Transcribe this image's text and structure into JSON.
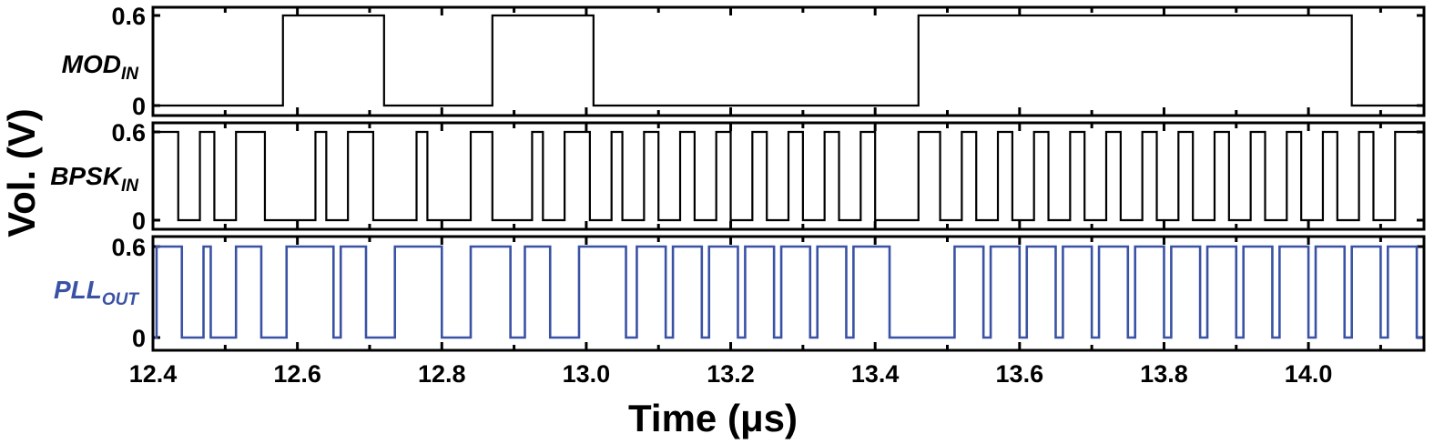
{
  "chart_data": {
    "type": "line",
    "xlabel": "Time (μs)",
    "ylabel": "Vol. (V)",
    "xlim": [
      12.4,
      14.16
    ],
    "x_ticks": [
      "12.4",
      "12.6",
      "12.8",
      "13.0",
      "13.2",
      "13.4",
      "13.6",
      "13.8",
      "14.0"
    ],
    "y_ticks": [
      "0",
      "0.6"
    ],
    "ylim": [
      0,
      0.6
    ],
    "colors": {
      "black": "#000000",
      "pll": "#3a52a5"
    },
    "panels": [
      {
        "name": "MOD",
        "subscript": "IN",
        "color": "#000000",
        "low": 0,
        "high": 0.6,
        "initial": 0,
        "transitions": [
          12.58,
          12.72,
          12.87,
          13.01,
          13.46,
          14.06
        ]
      },
      {
        "name": "BPSK",
        "subscript": "IN",
        "color": "#000000",
        "low": 0,
        "high": 0.6,
        "initial": 0.6,
        "transitions": [
          12.435,
          12.465,
          12.485,
          12.515,
          12.555,
          12.625,
          12.64,
          12.67,
          12.705,
          12.765,
          12.78,
          12.84,
          12.87,
          12.925,
          12.94,
          12.97,
          13.005,
          13.035,
          13.05,
          13.08,
          13.1,
          13.13,
          13.15,
          13.18,
          13.2,
          13.23,
          13.25,
          13.28,
          13.3,
          13.33,
          13.35,
          13.38,
          13.4,
          13.46,
          13.49,
          13.52,
          13.54,
          13.57,
          13.59,
          13.62,
          13.64,
          13.67,
          13.69,
          13.72,
          13.74,
          13.77,
          13.79,
          13.82,
          13.84,
          13.87,
          13.89,
          13.92,
          13.94,
          13.97,
          13.99,
          14.02,
          14.04,
          14.07,
          14.09,
          14.12
        ]
      },
      {
        "name": "PLL",
        "subscript": "OUT",
        "color": "#3a52a5",
        "low": 0,
        "high": 0.6,
        "initial": 0,
        "transitions": [
          12.405,
          12.44,
          12.47,
          12.48,
          12.515,
          12.55,
          12.585,
          12.65,
          12.66,
          12.695,
          12.735,
          12.8,
          12.84,
          12.895,
          12.915,
          12.95,
          12.99,
          13.055,
          13.07,
          13.11,
          13.12,
          13.16,
          13.17,
          13.21,
          13.22,
          13.26,
          13.27,
          13.31,
          13.32,
          13.36,
          13.37,
          13.42,
          13.51,
          13.55,
          13.56,
          13.6,
          13.61,
          13.65,
          13.66,
          13.7,
          13.71,
          13.75,
          13.76,
          13.8,
          13.81,
          13.85,
          13.86,
          13.9,
          13.91,
          13.95,
          13.96,
          14.0,
          14.01,
          14.05,
          14.06,
          14.1,
          14.11,
          14.15
        ]
      }
    ]
  }
}
